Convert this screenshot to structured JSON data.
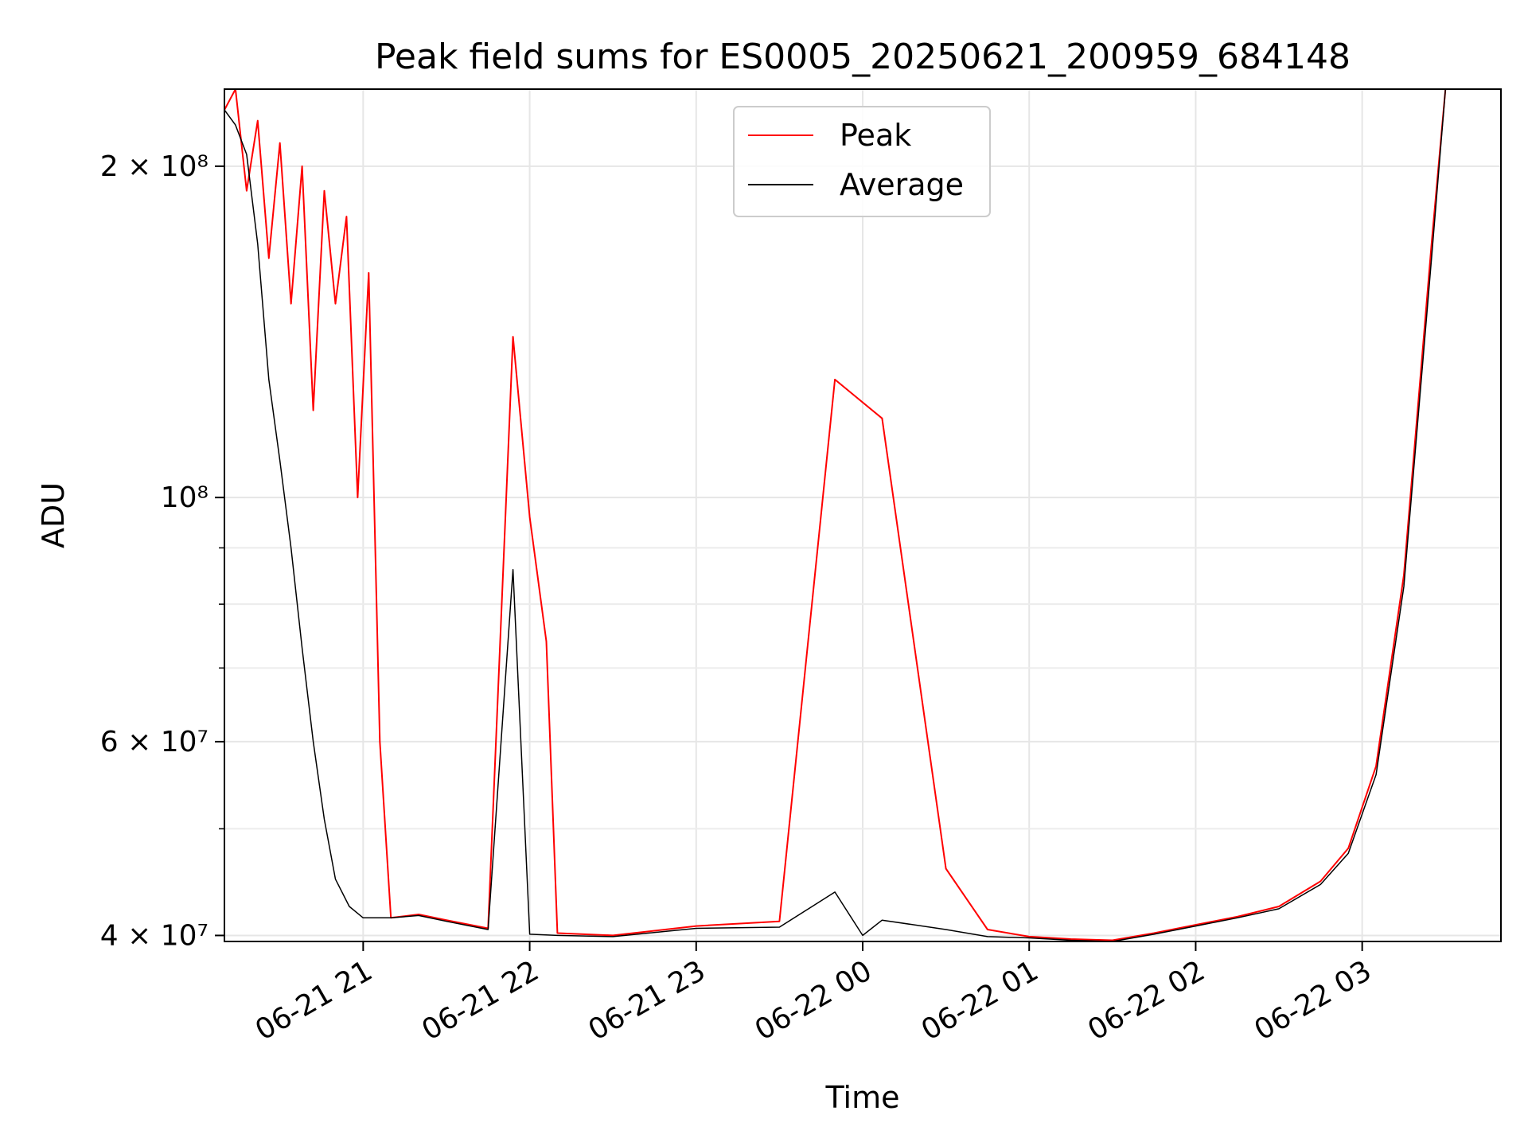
{
  "chart_data": {
    "type": "line",
    "title": "Peak field sums for ES0005_20250621_200959_684148",
    "xlabel": "Time",
    "ylabel": "ADU",
    "yscale": "log",
    "grid": true,
    "legend_position": "upper center",
    "xlim": [
      "2025-06-21 20:10",
      "2025-06-22 03:50"
    ],
    "ylim": [
      39500000,
      235000000
    ],
    "x_ticks": [
      {
        "t": "2025-06-21 21:00",
        "label": "06-21 21"
      },
      {
        "t": "2025-06-21 22:00",
        "label": "06-21 22"
      },
      {
        "t": "2025-06-21 23:00",
        "label": "06-21 23"
      },
      {
        "t": "2025-06-22 00:00",
        "label": "06-22 00"
      },
      {
        "t": "2025-06-22 01:00",
        "label": "06-22 01"
      },
      {
        "t": "2025-06-22 02:00",
        "label": "06-22 02"
      },
      {
        "t": "2025-06-22 03:00",
        "label": "06-22 03"
      }
    ],
    "y_ticks_major": [
      {
        "v": 40000000,
        "label": "4 × 10⁷"
      },
      {
        "v": 60000000,
        "label": "6 × 10⁷"
      },
      {
        "v": 100000000,
        "label": "10⁸"
      },
      {
        "v": 200000000,
        "label": "2 × 10⁸"
      }
    ],
    "y_ticks_minor": [
      50000000,
      70000000,
      80000000,
      90000000
    ],
    "series": [
      {
        "name": "Peak",
        "color": "#ff0000",
        "x": [
          "2025-06-21 20:10",
          "2025-06-21 20:14",
          "2025-06-21 20:18",
          "2025-06-21 20:22",
          "2025-06-21 20:26",
          "2025-06-21 20:30",
          "2025-06-21 20:34",
          "2025-06-21 20:38",
          "2025-06-21 20:42",
          "2025-06-21 20:46",
          "2025-06-21 20:50",
          "2025-06-21 20:54",
          "2025-06-21 20:58",
          "2025-06-21 21:02",
          "2025-06-21 21:06",
          "2025-06-21 21:10",
          "2025-06-21 21:20",
          "2025-06-21 21:30",
          "2025-06-21 21:45",
          "2025-06-21 21:54",
          "2025-06-21 22:00",
          "2025-06-21 22:06",
          "2025-06-21 22:10",
          "2025-06-21 22:30",
          "2025-06-21 23:00",
          "2025-06-21 23:30",
          "2025-06-21 23:50",
          "2025-06-22 00:07",
          "2025-06-22 00:30",
          "2025-06-22 00:45",
          "2025-06-22 01:00",
          "2025-06-22 01:15",
          "2025-06-22 01:30",
          "2025-06-22 01:45",
          "2025-06-22 02:00",
          "2025-06-22 02:15",
          "2025-06-22 02:30",
          "2025-06-22 02:45",
          "2025-06-22 02:55",
          "2025-06-22 03:05",
          "2025-06-22 03:15",
          "2025-06-22 03:25",
          "2025-06-22 03:30"
        ],
        "values": [
          225000000,
          235000000,
          190000000,
          220000000,
          165000000,
          210000000,
          150000000,
          200000000,
          120000000,
          190000000,
          150000000,
          180000000,
          100000000,
          160000000,
          60000000,
          41500000,
          41800000,
          41300000,
          40600000,
          140000000,
          96000000,
          74000000,
          40200000,
          40000000,
          40800000,
          41200000,
          128000000,
          118000000,
          46000000,
          40500000,
          39900000,
          39700000,
          39600000,
          40200000,
          40900000,
          41600000,
          42500000,
          44800000,
          48000000,
          57000000,
          85000000,
          170000000,
          235000000
        ]
      },
      {
        "name": "Average",
        "color": "#000000",
        "x": [
          "2025-06-21 20:10",
          "2025-06-21 20:14",
          "2025-06-21 20:18",
          "2025-06-21 20:22",
          "2025-06-21 20:26",
          "2025-06-21 20:30",
          "2025-06-21 20:34",
          "2025-06-21 20:38",
          "2025-06-21 20:42",
          "2025-06-21 20:46",
          "2025-06-21 20:50",
          "2025-06-21 20:55",
          "2025-06-21 21:00",
          "2025-06-21 21:10",
          "2025-06-21 21:20",
          "2025-06-21 21:30",
          "2025-06-21 21:45",
          "2025-06-21 21:54",
          "2025-06-21 22:00",
          "2025-06-21 22:10",
          "2025-06-21 22:30",
          "2025-06-21 23:00",
          "2025-06-21 23:30",
          "2025-06-21 23:50",
          "2025-06-22 00:00",
          "2025-06-22 00:07",
          "2025-06-22 00:30",
          "2025-06-22 00:45",
          "2025-06-22 01:00",
          "2025-06-22 01:15",
          "2025-06-22 01:30",
          "2025-06-22 01:45",
          "2025-06-22 02:00",
          "2025-06-22 02:15",
          "2025-06-22 02:30",
          "2025-06-22 02:45",
          "2025-06-22 02:55",
          "2025-06-22 03:05",
          "2025-06-22 03:15",
          "2025-06-22 03:25",
          "2025-06-22 03:30"
        ],
        "values": [
          225000000,
          218000000,
          205000000,
          170000000,
          128000000,
          108000000,
          90000000,
          73000000,
          60000000,
          51000000,
          45000000,
          42500000,
          41500000,
          41500000,
          41700000,
          41200000,
          40500000,
          86000000,
          40100000,
          40000000,
          39900000,
          40600000,
          40700000,
          43800000,
          40000000,
          41300000,
          40500000,
          39900000,
          39800000,
          39600000,
          39500000,
          40100000,
          40800000,
          41500000,
          42300000,
          44500000,
          47500000,
          56000000,
          83000000,
          165000000,
          235000000
        ]
      }
    ]
  }
}
